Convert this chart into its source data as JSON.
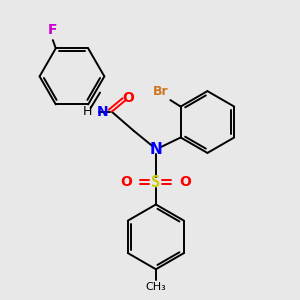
{
  "background_color": "#e8e8e8",
  "bond_color": "#000000",
  "N_color": "#0000ff",
  "O_color": "#ff0000",
  "S_color": "#cccc00",
  "F_color": "#cc00cc",
  "Br_color": "#cc7722",
  "figsize": [
    3.0,
    3.0
  ],
  "dpi": 100,
  "xlim": [
    0,
    10
  ],
  "ylim": [
    0,
    10
  ]
}
